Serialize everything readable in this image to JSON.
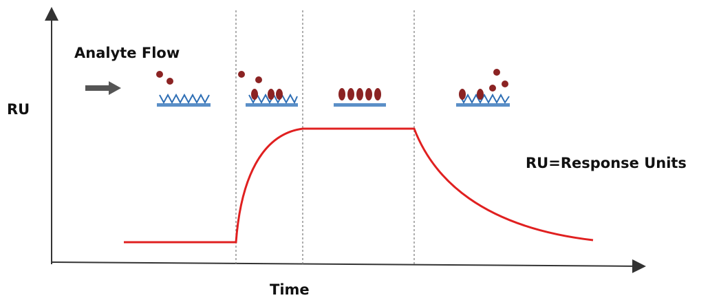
{
  "labels": {
    "flow": "Analyte Flow",
    "y_axis": "RU",
    "legend": "RU=Response Units",
    "x_axis": "Time"
  }
}
